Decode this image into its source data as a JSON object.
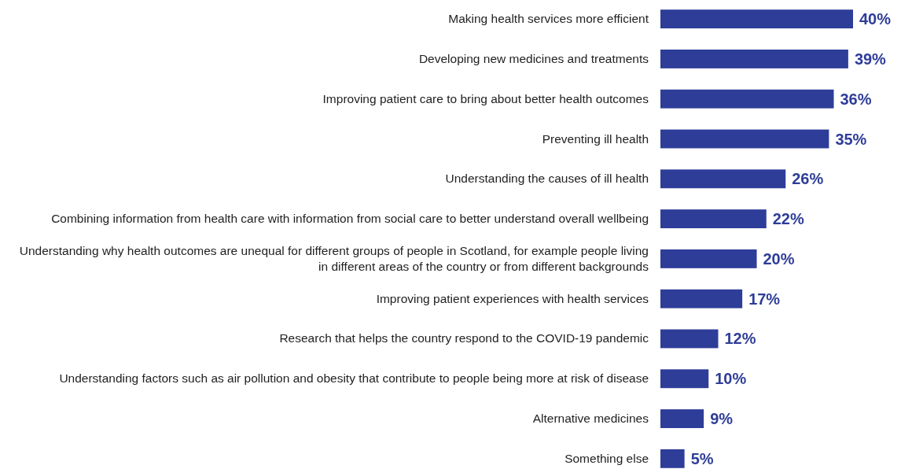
{
  "chart_data": {
    "type": "bar",
    "orientation": "horizontal",
    "categories": [
      "Making health services more efficient",
      "Developing new medicines and treatments",
      "Improving patient care to bring about better health outcomes",
      "Preventing ill health",
      "Understanding the causes of ill health",
      "Combining information from health care with information from social care to better understand overall wellbeing",
      "Understanding why health outcomes are unequal for different groups of people in Scotland, for example people living in different areas of the country or from different backgrounds",
      "Improving patient experiences with health services",
      "Research that helps the country respond to the COVID-19 pandemic",
      "Understanding factors such as air pollution and obesity that contribute to people being more at risk of disease",
      "Alternative medicines",
      "Something else"
    ],
    "values": [
      40,
      39,
      36,
      35,
      26,
      22,
      20,
      17,
      12,
      10,
      9,
      5
    ],
    "value_labels": [
      "40%",
      "39%",
      "36%",
      "35%",
      "26%",
      "22%",
      "20%",
      "17%",
      "12%",
      "10%",
      "9%",
      "5%"
    ],
    "color": "#2e3d98"
  }
}
